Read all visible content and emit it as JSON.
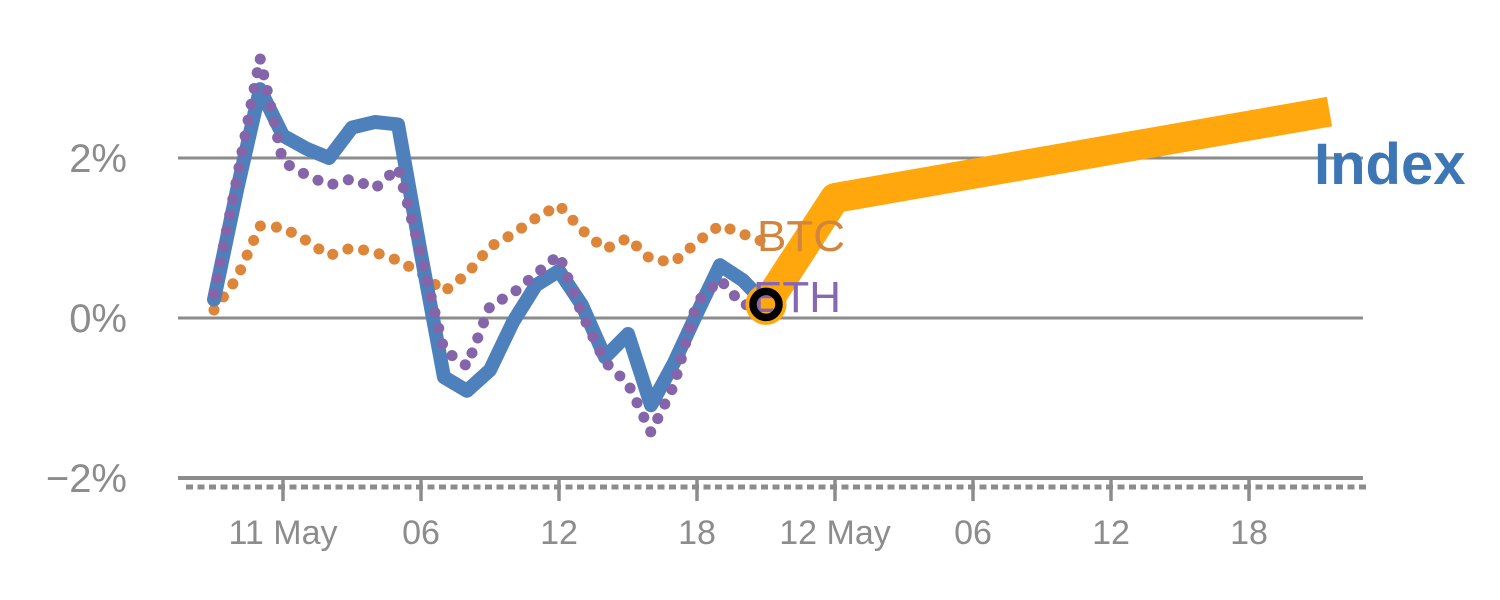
{
  "chart_data": {
    "type": "line",
    "title": "",
    "description": "Hourly percent-change lines for BTC, ETH and a composite Index over 10-12 May, with a thick projected Index path starting 11 May 21:00 marked by an open black circle.",
    "x_axis": {
      "unit": "hours since 10 May 00:00",
      "range_t": [
        19.4,
        71.0
      ],
      "major_ticks": [
        {
          "t": 24,
          "label": "11 May"
        },
        {
          "t": 30,
          "label": "06"
        },
        {
          "t": 36,
          "label": "12"
        },
        {
          "t": 42,
          "label": "18"
        },
        {
          "t": 48,
          "label": "12 May"
        },
        {
          "t": 54,
          "label": "06"
        },
        {
          "t": 60,
          "label": "12"
        },
        {
          "t": 66,
          "label": "18"
        }
      ],
      "minor_tick_every_hours": 1
    },
    "y_axis": {
      "unit": "percent change",
      "ticks": [
        {
          "v": 2,
          "label": "2%"
        },
        {
          "v": 0,
          "label": "0%"
        },
        {
          "v": -2,
          "label": "−2%"
        }
      ],
      "grid": true
    },
    "legend_position": "end-of-line annotations",
    "series": [
      {
        "name": "BTC",
        "style": "dotted",
        "color": "#DD8639",
        "t": [
          21,
          22,
          23,
          24,
          25,
          26,
          27,
          28,
          29,
          30,
          31,
          32,
          33,
          34,
          35,
          36,
          37,
          38,
          39,
          40,
          41,
          42,
          43,
          44,
          45
        ],
        "v": [
          0.1,
          0.5,
          1.15,
          1.13,
          0.97,
          0.78,
          0.88,
          0.82,
          0.72,
          0.56,
          0.33,
          0.55,
          0.89,
          1.05,
          1.25,
          1.41,
          1.1,
          0.86,
          1.0,
          0.73,
          0.7,
          0.95,
          1.16,
          1.05,
          0.94
        ]
      },
      {
        "name": "Index",
        "style": "solid",
        "color": "#4E80BC",
        "t": [
          21,
          22,
          23,
          24,
          25,
          26,
          27,
          28,
          29,
          30,
          31,
          32,
          33,
          34,
          35,
          36,
          37,
          38,
          39,
          40,
          41,
          42,
          43,
          44,
          45
        ],
        "v": [
          0.23,
          1.6,
          2.86,
          2.28,
          2.12,
          2.0,
          2.38,
          2.45,
          2.42,
          0.8,
          -0.74,
          -0.91,
          -0.65,
          -0.05,
          0.41,
          0.59,
          0.16,
          -0.49,
          -0.2,
          -1.09,
          -0.56,
          0.06,
          0.66,
          0.47,
          0.17
        ]
      },
      {
        "name": "ETH",
        "style": "dotted",
        "color": "#8565A9",
        "t": [
          21,
          22,
          23,
          24,
          25,
          26,
          27,
          28,
          29,
          30,
          31,
          32,
          33,
          34,
          35,
          36,
          37,
          38,
          39,
          40,
          41,
          42,
          43,
          44,
          45
        ],
        "v": [
          0.3,
          1.75,
          3.25,
          1.95,
          1.79,
          1.66,
          1.74,
          1.62,
          1.88,
          0.79,
          -0.4,
          -0.6,
          0.15,
          0.31,
          0.55,
          0.79,
          0.05,
          -0.55,
          -0.82,
          -1.43,
          -0.84,
          0.2,
          0.48,
          0.16,
          0.2
        ]
      }
    ],
    "forecast": {
      "series": "Index",
      "style": "solid-thick",
      "color": "#FFA70D",
      "t": [
        45,
        48,
        69.5
      ],
      "v": [
        0.17,
        1.5,
        2.58
      ]
    },
    "start_marker": {
      "t": 45,
      "v": 0.17,
      "shape": "open-circle",
      "ring_color": "#000000",
      "fill_color": "#FFA70D"
    }
  },
  "annotations": {
    "btc_label": "BTC",
    "eth_label": "ETH",
    "index_label": "Index"
  },
  "colors": {
    "background": "#FFFFFF",
    "axis": "#8C8C8C",
    "btc_line": "#DD8639",
    "eth_line": "#8565A9",
    "index_line": "#4E80BC",
    "forecast": "#FFA70D",
    "btc_label": "#D2853E",
    "eth_label": "#8767B0",
    "index_label": "#3D76B5",
    "marker_ring": "#000000"
  }
}
